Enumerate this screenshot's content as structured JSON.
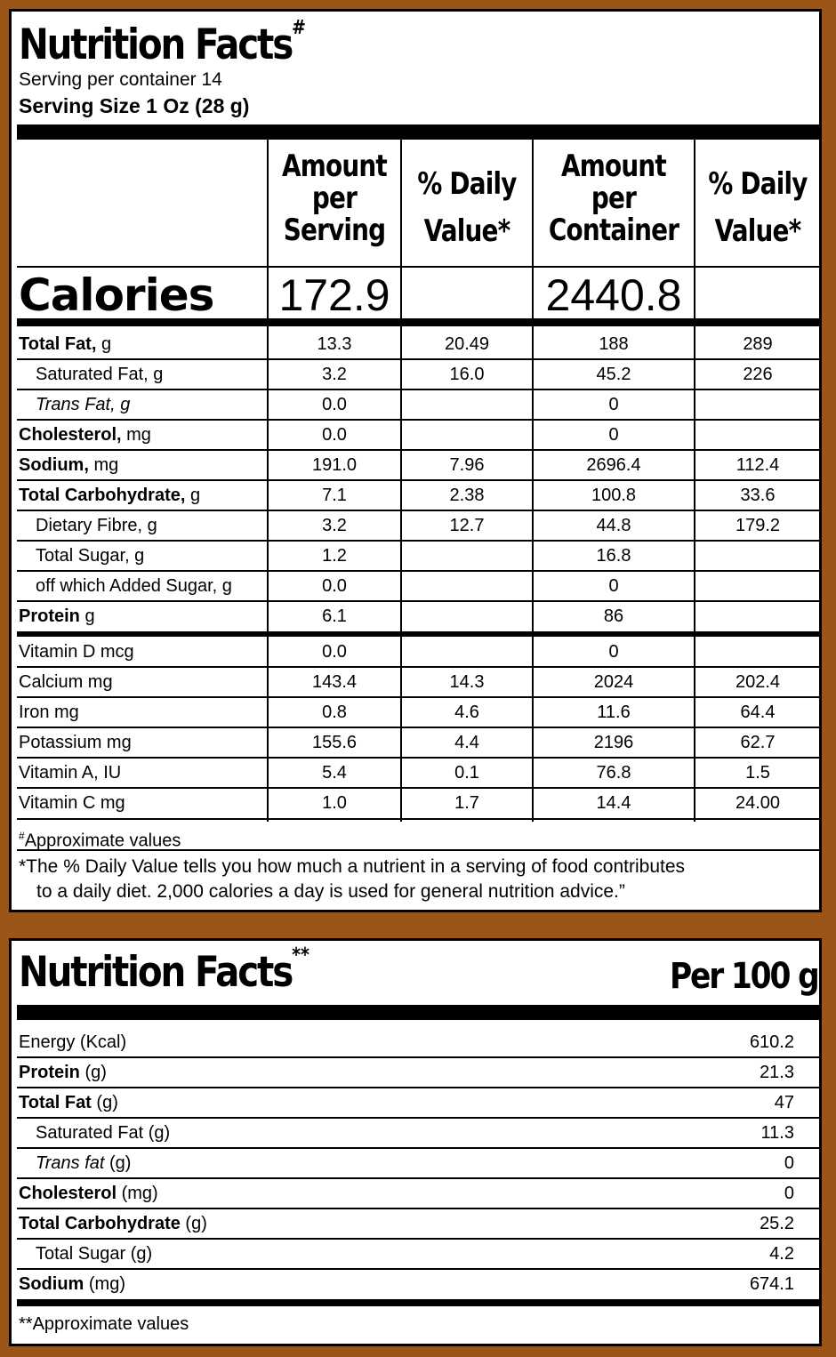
{
  "panel1": {
    "title": "Nutrition Facts",
    "title_mark": "#",
    "servings": "Serving per container 14",
    "serving_size": "Serving Size 1 Oz (28 g)",
    "col_headers": {
      "amount_serving": [
        "Amount",
        "per",
        "Serving"
      ],
      "dv1": [
        "% Daily",
        "Value*"
      ],
      "amount_container": [
        "Amount",
        "per",
        "Container"
      ],
      "dv2": [
        "% Daily",
        "Value*"
      ]
    },
    "calories": {
      "label": "Calories",
      "per_serving": "172.9",
      "per_container": "2440.8"
    },
    "rows": [
      {
        "bold": "Total Fat,",
        "unit": " g",
        "indent": false,
        "italic": false,
        "v1": "13.3",
        "v2": "20.49",
        "v3": "188",
        "v4": "289"
      },
      {
        "bold": "",
        "unit": "Saturated Fat, g",
        "indent": true,
        "italic": false,
        "v1": "3.2",
        "v2": "16.0",
        "v3": "45.2",
        "v4": "226"
      },
      {
        "bold": "",
        "unit": "Trans Fat, g",
        "indent": true,
        "italic": true,
        "v1": "0.0",
        "v2": "",
        "v3": "0",
        "v4": ""
      },
      {
        "bold": "Cholesterol,",
        "unit": " mg",
        "indent": false,
        "italic": false,
        "v1": "0.0",
        "v2": "",
        "v3": "0",
        "v4": ""
      },
      {
        "bold": "Sodium,",
        "unit": " mg",
        "indent": false,
        "italic": false,
        "v1": "191.0",
        "v2": "7.96",
        "v3": "2696.4",
        "v4": "112.4"
      },
      {
        "bold": "Total Carbohydrate,",
        "unit": " g",
        "indent": false,
        "italic": false,
        "v1": "7.1",
        "v2": "2.38",
        "v3": "100.8",
        "v4": "33.6"
      },
      {
        "bold": "",
        "unit": "Dietary Fibre, g",
        "indent": true,
        "italic": false,
        "v1": "3.2",
        "v2": "12.7",
        "v3": "44.8",
        "v4": "179.2"
      },
      {
        "bold": "",
        "unit": "Total Sugar, g",
        "indent": true,
        "italic": false,
        "v1": "1.2",
        "v2": "",
        "v3": "16.8",
        "v4": ""
      },
      {
        "bold": "",
        "unit": "off which Added Sugar, g",
        "indent": true,
        "italic": false,
        "v1": "0.0",
        "v2": "",
        "v3": "0",
        "v4": ""
      },
      {
        "bold": "Protein",
        "unit": " g",
        "indent": false,
        "italic": false,
        "v1": "6.1",
        "v2": "",
        "v3": "86",
        "v4": ""
      },
      {
        "bold": "",
        "unit": "Vitamin D mcg",
        "indent": false,
        "italic": false,
        "v1": "0.0",
        "v2": "",
        "v3": "0",
        "v4": ""
      },
      {
        "bold": "",
        "unit": "Calcium mg",
        "indent": false,
        "italic": false,
        "v1": "143.4",
        "v2": "14.3",
        "v3": "2024",
        "v4": "202.4"
      },
      {
        "bold": "",
        "unit": "Iron mg",
        "indent": false,
        "italic": false,
        "v1": "0.8",
        "v2": "4.6",
        "v3": "11.6",
        "v4": "64.4"
      },
      {
        "bold": "",
        "unit": "Potassium mg",
        "indent": false,
        "italic": false,
        "v1": "155.6",
        "v2": "4.4",
        "v3": "2196",
        "v4": "62.7"
      },
      {
        "bold": "",
        "unit": "Vitamin A, IU",
        "indent": false,
        "italic": false,
        "v1": "5.4",
        "v2": "0.1",
        "v3": "76.8",
        "v4": "1.5"
      },
      {
        "bold": "",
        "unit": "Vitamin C mg",
        "indent": false,
        "italic": false,
        "v1": "1.0",
        "v2": "1.7",
        "v3": "14.4",
        "v4": "24.00"
      }
    ],
    "approx_mark": "#",
    "approx_text": "Approximate values",
    "note_line1": "*The % Daily Value tells you how much a nutrient in a serving of food contributes",
    "note_line2": "to a daily diet. 2,000 calories a day is used for general nutrition advice.”"
  },
  "panel2": {
    "title": "Nutrition Facts",
    "title_mark": "**",
    "per": "Per 100 g",
    "rows": [
      {
        "bold": "",
        "unit": "Energy (Kcal)",
        "indent": false,
        "italic": false,
        "value": "610.2"
      },
      {
        "bold": "Protein",
        "unit": " (g)",
        "indent": false,
        "italic": false,
        "value": "21.3"
      },
      {
        "bold": "Total Fat",
        "unit": " (g)",
        "indent": false,
        "italic": false,
        "value": "47"
      },
      {
        "bold": "",
        "unit": "Saturated Fat (g)",
        "indent": true,
        "italic": false,
        "value": "11.3"
      },
      {
        "bold": "",
        "unit": "Trans fat",
        "unit2": " (g)",
        "indent": true,
        "italic": true,
        "value": "0"
      },
      {
        "bold": "Cholesterol",
        "unit": " (mg)",
        "indent": false,
        "italic": false,
        "value": "0"
      },
      {
        "bold": "Total Carbohydrate",
        "unit": " (g)",
        "indent": false,
        "italic": false,
        "value": "25.2"
      },
      {
        "bold": "",
        "unit": "Total Sugar (g)",
        "indent": true,
        "italic": false,
        "value": "4.2"
      },
      {
        "bold": "Sodium",
        "unit": " (mg)",
        "indent": false,
        "italic": false,
        "value": "674.1"
      }
    ],
    "approx_text": "**Approximate values"
  }
}
